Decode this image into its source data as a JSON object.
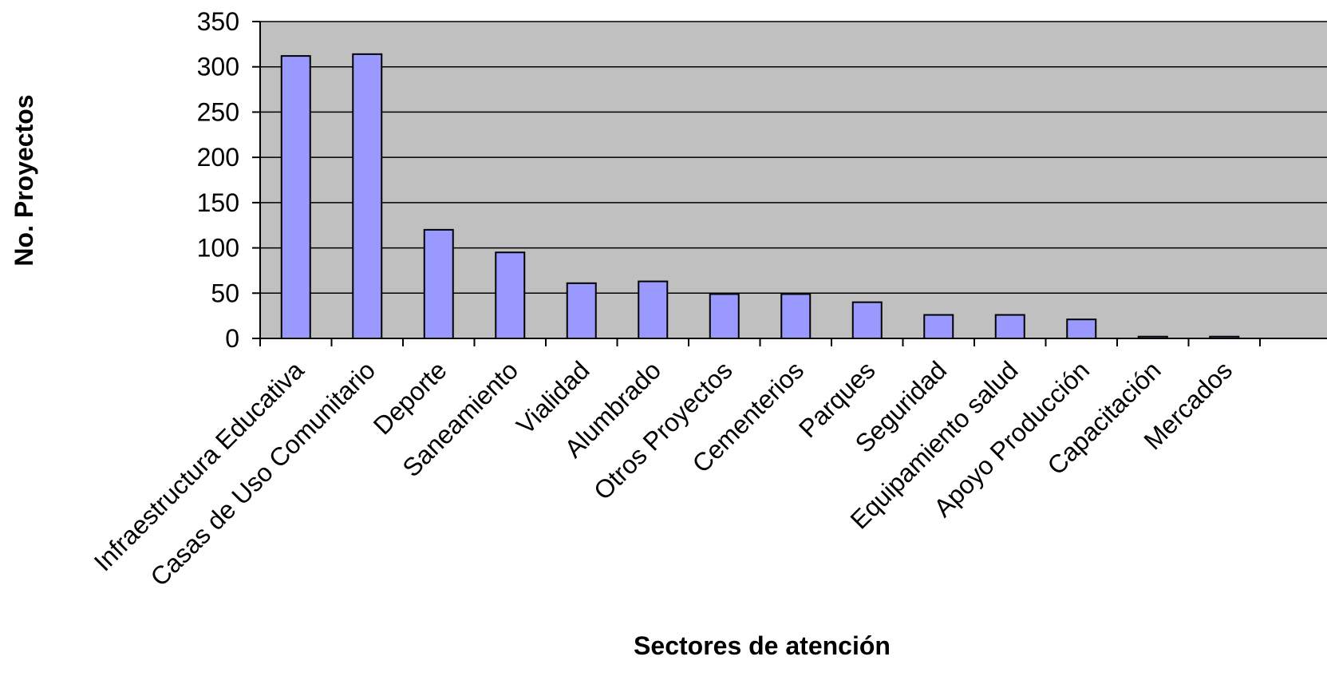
{
  "chart_data": {
    "type": "bar",
    "title": "",
    "xlabel": "Sectores de atención",
    "ylabel": "No. Proyectos",
    "ylim": [
      0,
      350
    ],
    "yticks": [
      0,
      50,
      100,
      150,
      200,
      250,
      300,
      350
    ],
    "grid": true,
    "legend": "none",
    "categories": [
      "Infraestructura Educativa",
      "Casas de Uso Comunitario",
      "Deporte",
      "Saneamiento",
      "Vialidad",
      "Alumbrado",
      "Otros Proyectos",
      "Cementerios",
      "Parques",
      "Seguridad",
      "Equipamiento salud",
      "Apoyo Producción",
      "Capacitación",
      "Mercados"
    ],
    "values": [
      312,
      314,
      120,
      95,
      61,
      63,
      49,
      49,
      40,
      26,
      26,
      21,
      2,
      2
    ],
    "colors": {
      "plot_background": "#c0c0c0",
      "bar_fill": "#9999ff",
      "bar_stroke": "#000000",
      "gridline": "#000000"
    }
  }
}
